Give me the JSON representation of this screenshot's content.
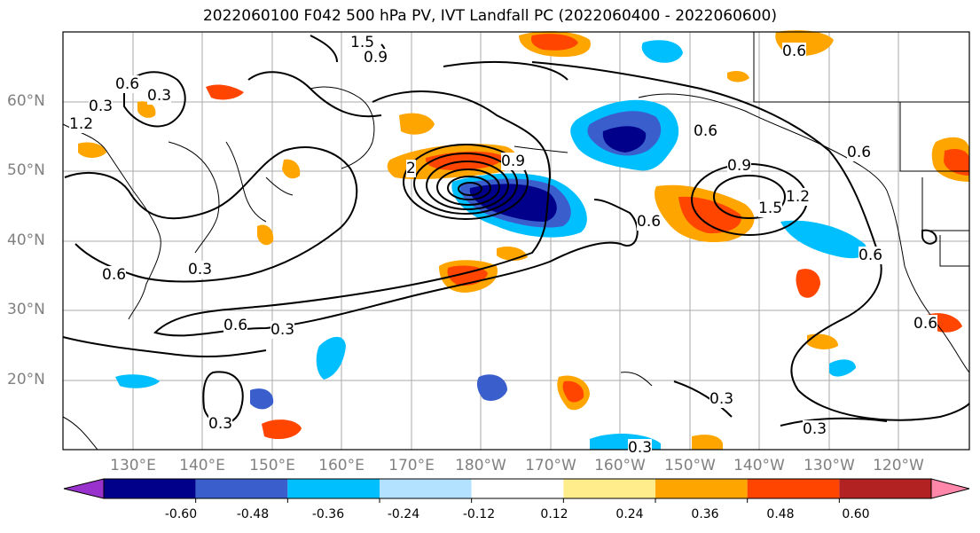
{
  "title": "2022060100 F042 500 hPa PV, IVT Landfall PC (2022060400 - 2022060600)",
  "lat_labels": [
    "60°N",
    "50°N",
    "40°N",
    "30°N",
    "20°N"
  ],
  "lon_labels": [
    "130°E",
    "140°E",
    "150°E",
    "160°E",
    "170°E",
    "180°W",
    "170°W",
    "160°W",
    "150°W",
    "140°W",
    "130°W",
    "120°W"
  ],
  "colorbar": {
    "colors": [
      "#9932cc",
      "#00008b",
      "#3a5fcd",
      "#00bfff",
      "#b2e2ff",
      "#ffffff",
      "#ffec8b",
      "#ffa500",
      "#ff4500",
      "#b22222",
      "#ff88aa"
    ],
    "labels": [
      "-0.60",
      "-0.48",
      "-0.36",
      "-0.24",
      "-0.12",
      "0.12",
      "0.24",
      "0.36",
      "0.48",
      "0.60"
    ]
  },
  "contour_labels": [
    "0.6",
    "0.3",
    "1.2",
    "0.9",
    "1.5",
    "0.9",
    "0.6",
    "0.3",
    "0.6",
    "0.6",
    "0.9",
    "1.5",
    "1.2",
    "0.6",
    "0.6",
    "0.6",
    "0.3",
    "0.3",
    "0.3",
    "0.3",
    "0.6",
    "0.3",
    "0.6",
    "0.3",
    "2"
  ]
}
